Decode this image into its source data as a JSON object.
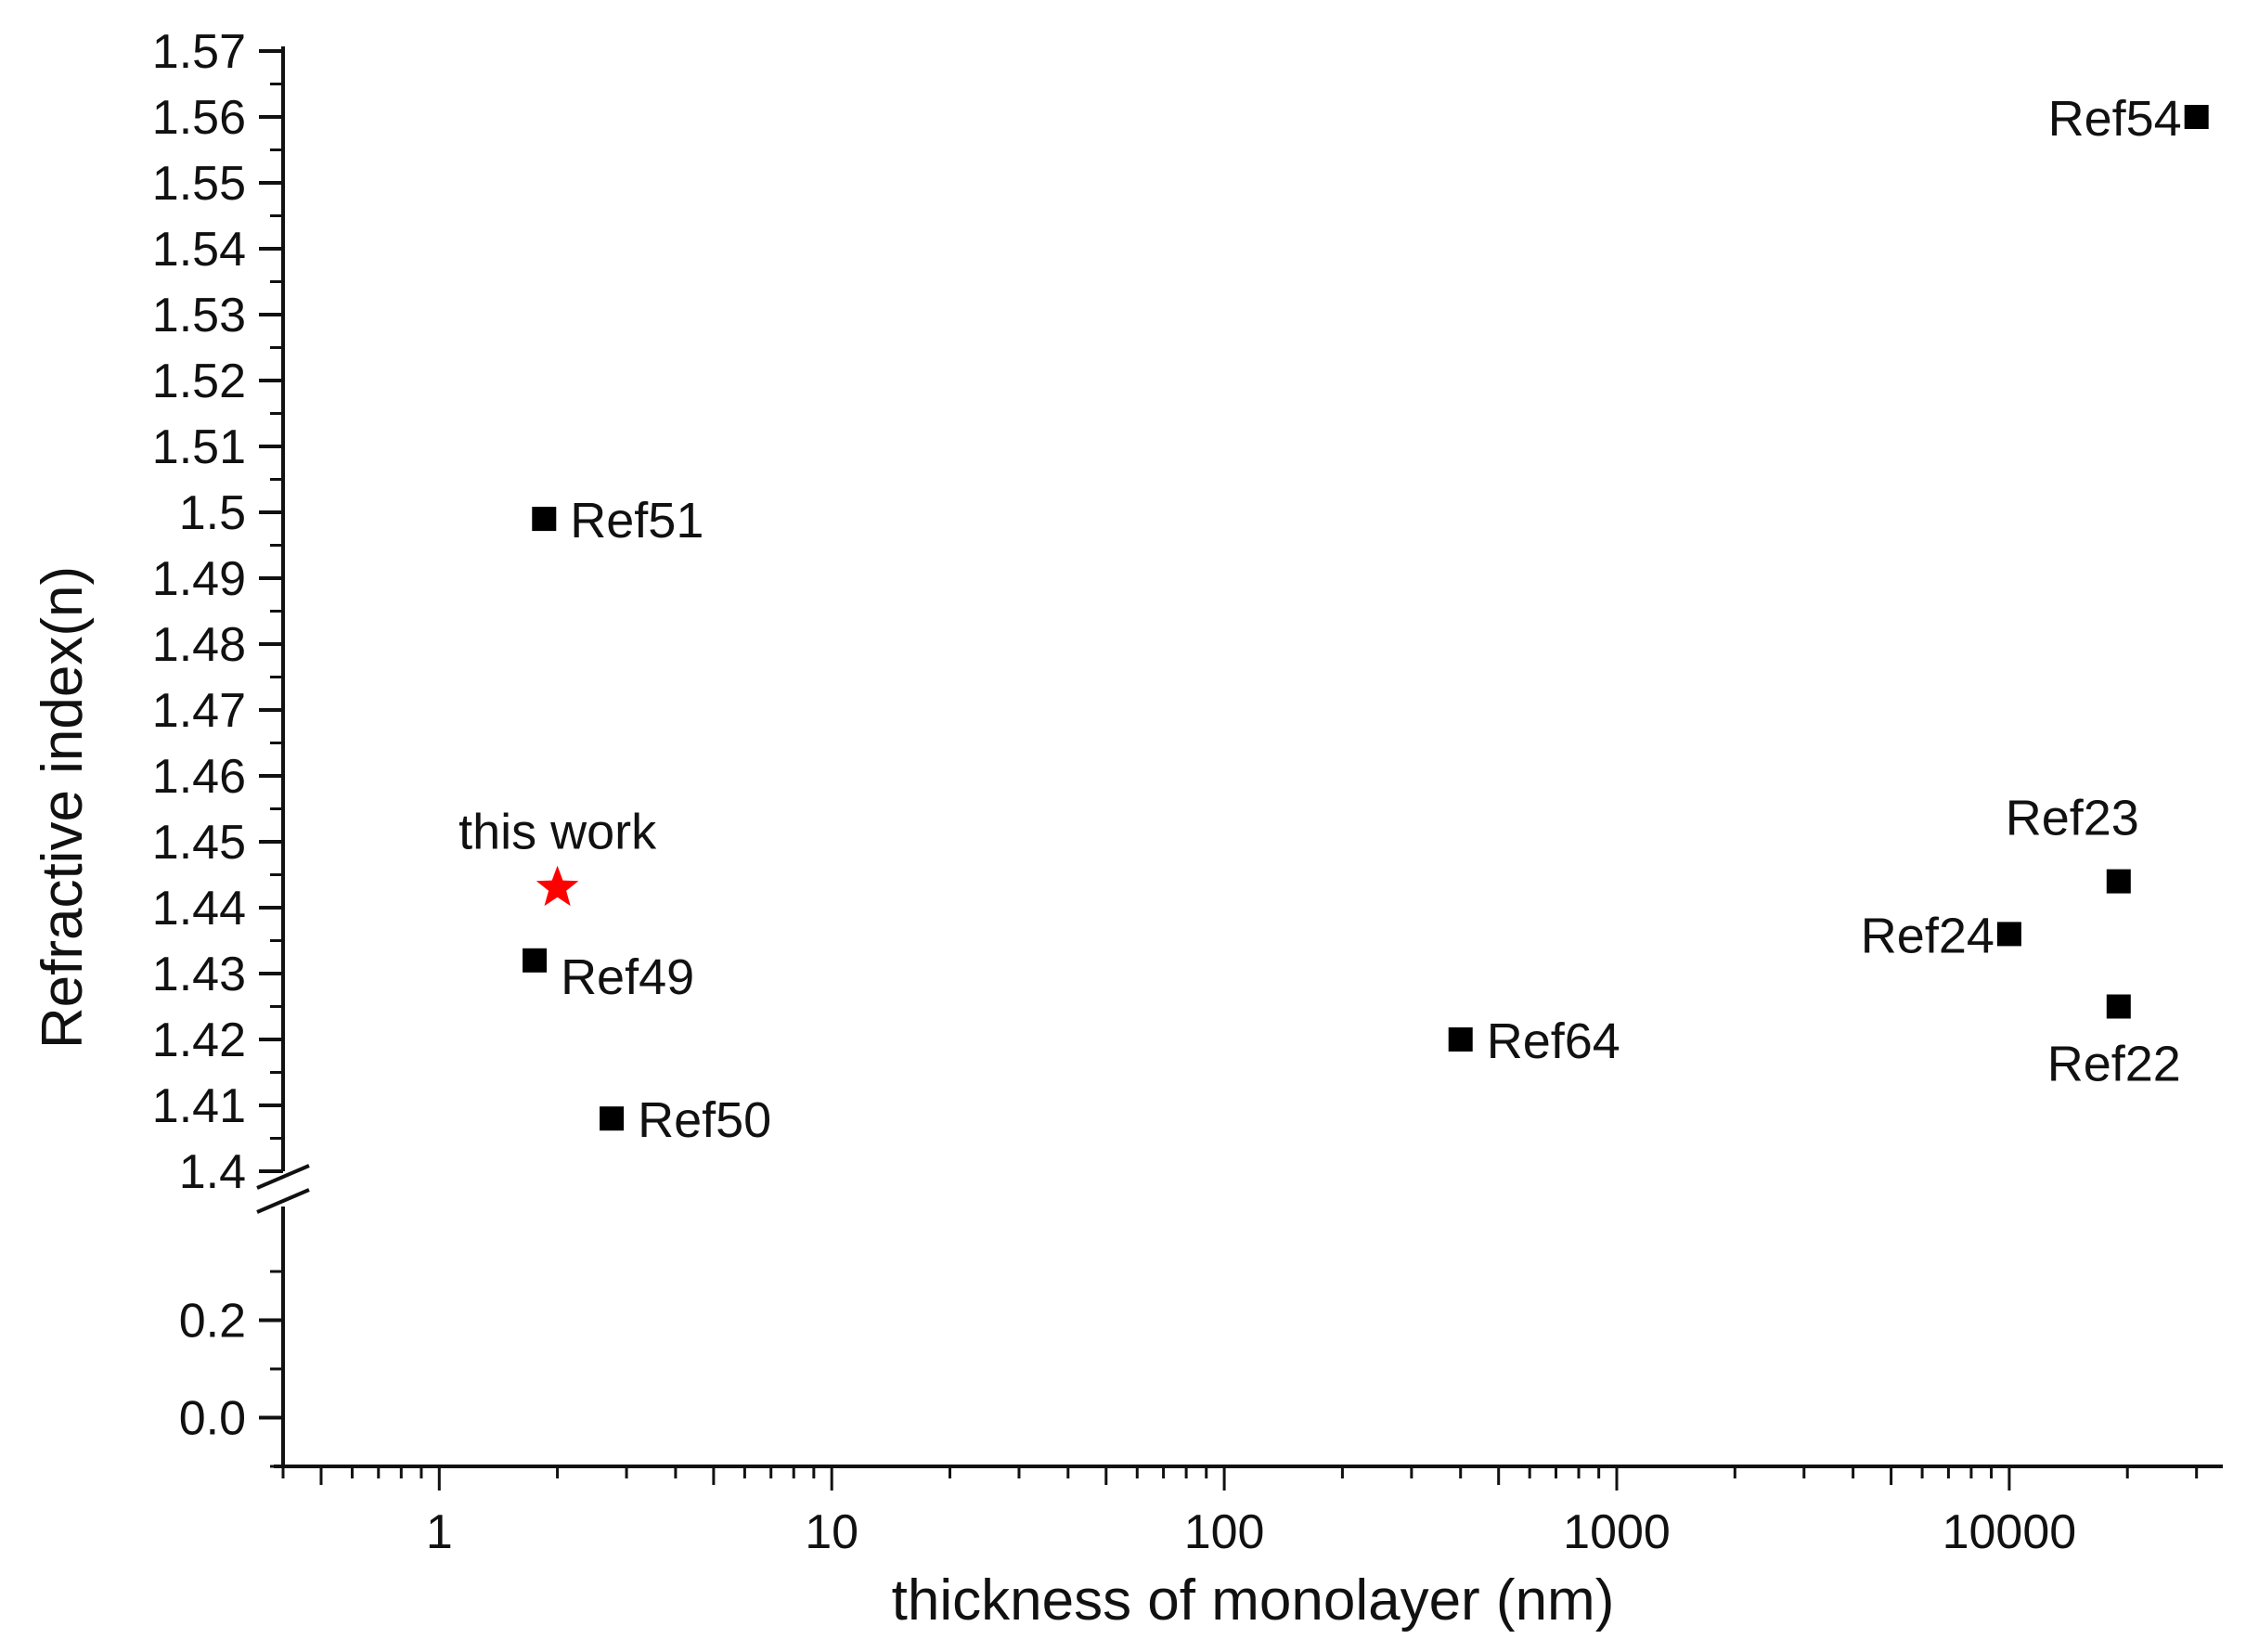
{
  "chart_data": {
    "type": "scatter",
    "xlabel": "thickness of monolayer (nm)",
    "ylabel": "Refractive index(n)",
    "x_scale": "log",
    "xlim": [
      0.4,
      35000
    ],
    "x_ticks": [
      {
        "value": 1,
        "label": "1"
      },
      {
        "value": 10,
        "label": "10"
      },
      {
        "value": 100,
        "label": "100"
      },
      {
        "value": 1000,
        "label": "1000"
      },
      {
        "value": 10000,
        "label": "10000"
      }
    ],
    "y_axis_break": true,
    "y_upper_range": [
      1.4,
      1.57
    ],
    "y_lower_range": [
      -0.1,
      0.3
    ],
    "y_ticks_upper": [
      "1.4",
      "1.41",
      "1.42",
      "1.43",
      "1.44",
      "1.45",
      "1.46",
      "1.47",
      "1.48",
      "1.49",
      "1.5",
      "1.51",
      "1.52",
      "1.53",
      "1.54",
      "1.55",
      "1.56",
      "1.57"
    ],
    "y_ticks_lower": [
      "0.0",
      "0.2"
    ],
    "grid": false,
    "points": [
      {
        "label": "Ref54",
        "x": 30000,
        "y": 1.56,
        "marker": "square",
        "color": "#000000",
        "label_pos": "left"
      },
      {
        "label": "Ref51",
        "x": 1.85,
        "y": 1.499,
        "marker": "square",
        "color": "#000000",
        "label_pos": "right"
      },
      {
        "label": "this work",
        "x": 2.0,
        "y": 1.443,
        "marker": "star",
        "color": "#ff0000",
        "label_pos": "above"
      },
      {
        "label": "Ref49",
        "x": 1.75,
        "y": 1.432,
        "marker": "square",
        "color": "#000000",
        "label_pos": "right-below"
      },
      {
        "label": "Ref50",
        "x": 2.75,
        "y": 1.408,
        "marker": "square",
        "color": "#000000",
        "label_pos": "right"
      },
      {
        "label": "Ref64",
        "x": 400,
        "y": 1.42,
        "marker": "square",
        "color": "#000000",
        "label_pos": "right"
      },
      {
        "label": "Ref23",
        "x": 19000,
        "y": 1.444,
        "marker": "square",
        "color": "#000000",
        "label_pos": "above"
      },
      {
        "label": "Ref24",
        "x": 10000,
        "y": 1.436,
        "marker": "square",
        "color": "#000000",
        "label_pos": "left"
      },
      {
        "label": "Ref22",
        "x": 19000,
        "y": 1.425,
        "marker": "square",
        "color": "#000000",
        "label_pos": "below"
      }
    ]
  }
}
